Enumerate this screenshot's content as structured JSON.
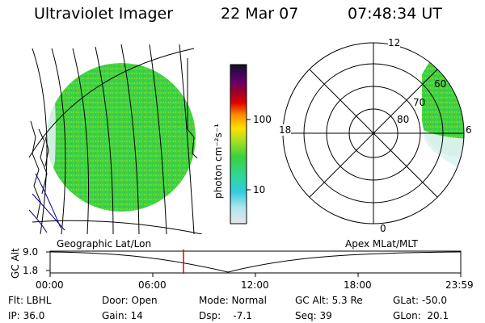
{
  "header": {
    "title": "Ultraviolet Imager",
    "date": "22 Mar 07",
    "time": "07:48:34 UT"
  },
  "colorbar": {
    "unit_label": "photon cm⁻²s⁻¹",
    "ticks": [
      "100",
      "10"
    ]
  },
  "polar": {
    "mlt_labels": [
      "12",
      "18",
      "6",
      "0"
    ],
    "lat_labels": [
      "60",
      "70",
      "80"
    ]
  },
  "panel_titles": {
    "left": "Geographic Lat/Lon",
    "right": "Apex MLat/MLT"
  },
  "alt_plot": {
    "axis_label": "GC Alt",
    "ticks": [
      "9.0",
      "1.8"
    ],
    "time_ticks": [
      "00:00",
      "06:00",
      "12:00",
      "18:00",
      "23:59"
    ]
  },
  "footer": {
    "filter": "Flt: LBHL",
    "ip": "IP: 36.0",
    "door": "Door: Open",
    "gain": "Gain: 14",
    "mode": "Mode: Normal",
    "dsp": "Dsp:    -7.1",
    "gc_alt": "GC Alt: 5.3 Re",
    "seq": "Seq: 39",
    "glat": "GLat: -50.0",
    "glon": "GLon:  20.1"
  },
  "colors": {
    "aurora_green": "#33d633",
    "marker_red": "#e00000"
  }
}
